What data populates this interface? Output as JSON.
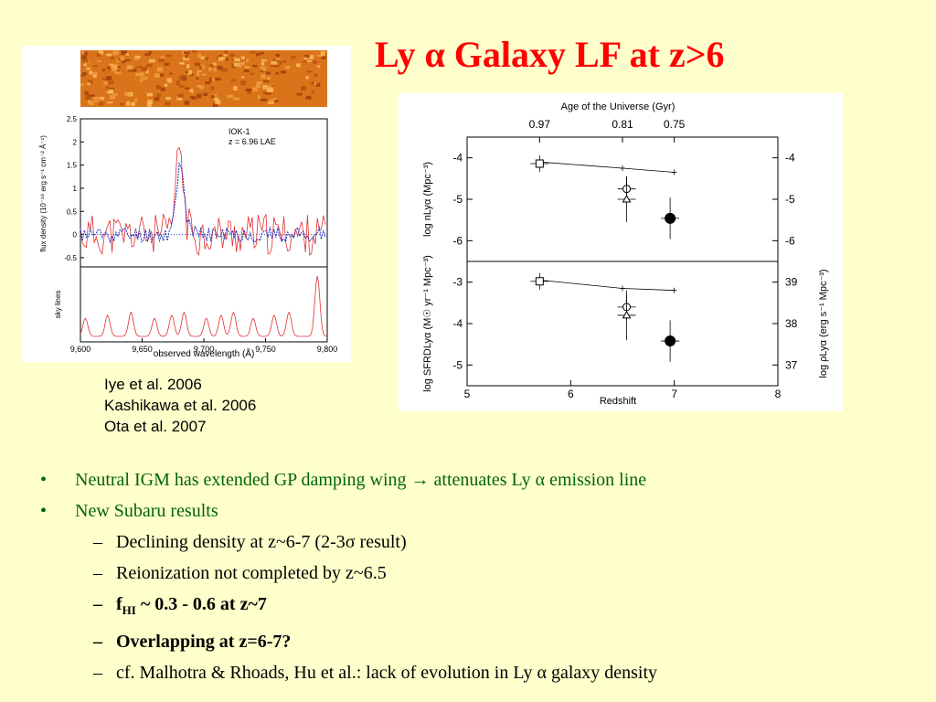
{
  "slide": {
    "title": "Ly α Galaxy LF at z>6",
    "references": [
      "Iye et al. 2006",
      "Kashikawa et al. 2006",
      "Ota et al. 2007"
    ],
    "bullets": [
      {
        "text": "Neutral IGM has extended GP damping wing → attenuates Ly α emission line"
      },
      {
        "text": "New Subaru results"
      }
    ],
    "sub_bullets": [
      {
        "text": "Declining density at z~6-7 (2-3σ result)"
      },
      {
        "text": "Reionization not completed by z~6.5"
      },
      {
        "pre": "f",
        "sub": "HI",
        "post": " ~ 0.3 - 0.6 at z~7"
      },
      {
        "text": "Overlapping at z=6-7?"
      },
      {
        "text": "cf. Malhotra & Rhoads, Hu et al.: lack of evolution in Ly α galaxy density"
      }
    ],
    "colors": {
      "title": "#ff0000",
      "bullets": "#006600",
      "background": "#ffffcc"
    }
  },
  "chart_data": [
    {
      "type": "line",
      "panel": "spectrum",
      "annotation": [
        "IOK-1",
        "z = 6.96 LAE"
      ],
      "xlabel": "observed wavelength (Å)",
      "ylabel_top": "flux density (10⁻¹⁸ erg s⁻¹ cm⁻² Å⁻¹)",
      "ylabel_bottom": "sky lines",
      "xlim": [
        9600,
        9800
      ],
      "ylim": [
        -0.7,
        2.5
      ],
      "x_ticks": [
        "9,600",
        "9,650",
        "9,700",
        "9,750",
        "9,800"
      ],
      "y_ticks": [
        "-0.5",
        "0",
        "0.5",
        "1",
        "1.5",
        "2",
        "2.5"
      ],
      "series": [
        {
          "style": "red-solid",
          "peak_x": 9680,
          "peak_y": 1.65
        },
        {
          "style": "blue-dotted",
          "peak_x": 9681,
          "peak_y": 1.55
        }
      ],
      "sky_lines_x": [
        9604,
        9622,
        9641,
        9660,
        9674,
        9684,
        9702,
        9714,
        9724,
        9740,
        9757,
        9769,
        9792
      ]
    },
    {
      "type": "scatter",
      "panel": "density",
      "top_axis_title": "Age of the Universe (Gyr)",
      "top_axis_ticks": [
        {
          "z": 5.7,
          "label": "0.97"
        },
        {
          "z": 6.5,
          "label": "0.81"
        },
        {
          "z": 7.0,
          "label": "0.75"
        }
      ],
      "xlabel": "Redshift",
      "xlim": [
        5,
        8
      ],
      "x_ticks": [
        "5",
        "6",
        "7",
        "8"
      ],
      "upper": {
        "ylabel_left": "log nLyα (Mpc⁻³)",
        "ylim": [
          -6.5,
          -3.5
        ],
        "y_ticks": [
          "-4",
          "-5",
          "-6"
        ],
        "right_ticks": [
          "-4",
          "-5",
          "-6"
        ],
        "line": [
          {
            "x": 5.7,
            "y": -4.1
          },
          {
            "x": 6.5,
            "y": -4.25
          },
          {
            "x": 7.0,
            "y": -4.35
          }
        ],
        "points": [
          {
            "x": 5.7,
            "y": -4.14,
            "yerr": 0.2,
            "marker": "open-square"
          },
          {
            "x": 6.54,
            "y": -4.75,
            "yerr": 0.3,
            "marker": "open-circle"
          },
          {
            "x": 6.54,
            "y": -5.0,
            "yerr": 0.55,
            "marker": "open-triangle"
          },
          {
            "x": 6.96,
            "y": -5.46,
            "yerr": 0.5,
            "marker": "filled-circle"
          }
        ]
      },
      "lower": {
        "ylabel_left": "log SFRDLyα (M☉ yr⁻¹ Mpc⁻³)",
        "ylabel_right": "log ρLyα (erg s⁻¹ Mpc⁻³)",
        "ylim": [
          -5.5,
          -2.5
        ],
        "y_ticks": [
          "-3",
          "-4",
          "-5"
        ],
        "right_ticks": [
          "39",
          "38",
          "37"
        ],
        "line": [
          {
            "x": 5.7,
            "y": -2.95
          },
          {
            "x": 6.5,
            "y": -3.15
          },
          {
            "x": 7.0,
            "y": -3.2
          }
        ],
        "points": [
          {
            "x": 5.7,
            "y": -2.98,
            "yerr": 0.2,
            "marker": "open-square"
          },
          {
            "x": 6.54,
            "y": -3.6,
            "yerr": 0.3,
            "marker": "open-circle"
          },
          {
            "x": 6.54,
            "y": -3.8,
            "yerr": 0.6,
            "marker": "open-triangle"
          },
          {
            "x": 6.96,
            "y": -4.42,
            "yerr": 0.5,
            "marker": "filled-circle"
          }
        ]
      }
    }
  ]
}
